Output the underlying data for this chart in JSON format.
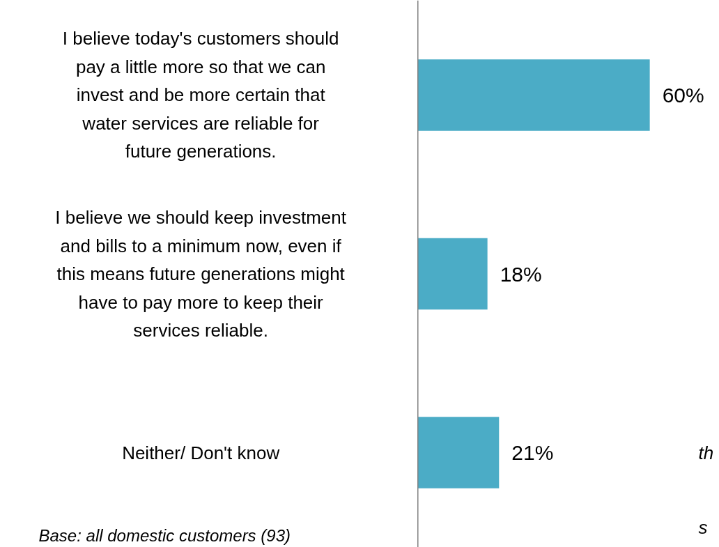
{
  "chart_data": {
    "type": "bar",
    "orientation": "horizontal",
    "categories": [
      "I believe today's customers should pay a little more so that we can invest and be more certain that water services are reliable for future generations.",
      "I believe we should keep investment and bills to a minimum now, even if this means future generations might have to pay more to keep their services reliable.",
      "Neither/ Don't know"
    ],
    "values": [
      60,
      18,
      21
    ],
    "color": "#4bacc6",
    "value_labels": [
      "60%",
      "18%",
      "21%"
    ],
    "annotations": [
      "Base: all domestic customers (93)",
      "th",
      "s"
    ]
  }
}
